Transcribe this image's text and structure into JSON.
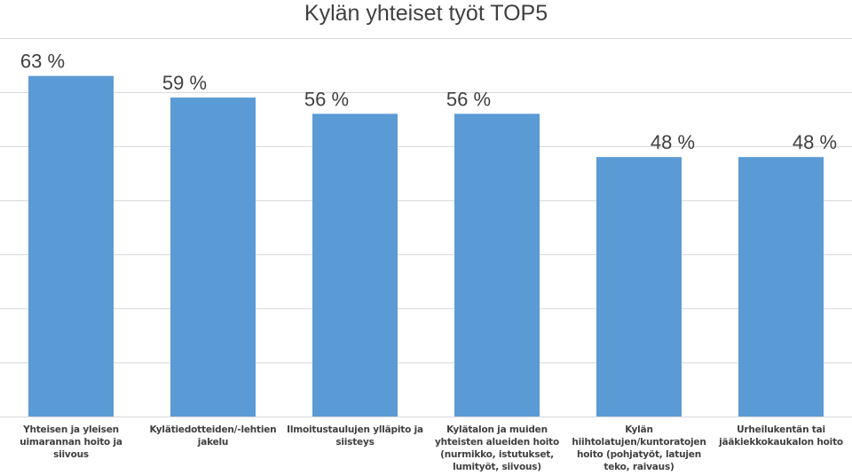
{
  "colors": {
    "bar": "#5b9bd5",
    "grid": "#d9d9d9",
    "text": "#404040"
  },
  "chart_data": {
    "type": "bar",
    "title": "Kylän yhteiset työt TOP5",
    "categories": [
      "Yhteisen ja yleisen uimarannan hoito ja siivous",
      "Kylätiedotteiden/-lehtien jakelu",
      "Ilmoitustaulujen ylläpito ja siisteys",
      "Kylätalon ja muiden yhteisten alueiden hoito (nurmikko, istutukset, lumityöt, siivous)",
      "Kylän hiihtolatujen/kuntoratojen hoito (pohjatyöt, latujen teko, raivaus)",
      "Urheilukentän tai jääkiekkokaukalon hoito"
    ],
    "values": [
      63,
      59,
      56,
      56,
      48,
      48
    ],
    "data_labels": [
      "63 %",
      "59 %",
      "56 %",
      "56 %",
      "48 %",
      "48 %"
    ],
    "xlabel": "",
    "ylabel": "",
    "ylim": [
      0,
      70
    ],
    "grid": true,
    "legend": "none"
  }
}
